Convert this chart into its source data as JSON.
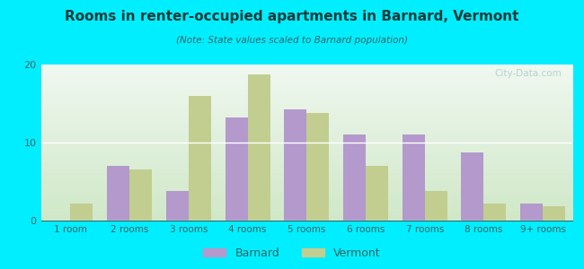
{
  "title": "Rooms in renter-occupied apartments in Barnard, Vermont",
  "subtitle": "(Note: State values scaled to Barnard population)",
  "categories": [
    "1 room",
    "2 rooms",
    "3 rooms",
    "4 rooms",
    "5 rooms",
    "6 rooms",
    "7 rooms",
    "8 rooms",
    "9+ rooms"
  ],
  "barnard": [
    0,
    7.0,
    3.8,
    13.2,
    14.3,
    11.0,
    11.0,
    8.7,
    2.2
  ],
  "vermont": [
    2.2,
    6.5,
    16.0,
    18.7,
    13.8,
    7.0,
    3.8,
    2.2,
    1.8
  ],
  "barnard_color": "#b399cc",
  "vermont_color": "#c2ce8f",
  "background_outer": "#00eeff",
  "background_plot_top": "#f0f8f0",
  "background_plot_bottom": "#d0e8c8",
  "ylim": [
    0,
    20
  ],
  "yticks": [
    0,
    10,
    20
  ],
  "bar_width": 0.38,
  "watermark": "City-Data.com",
  "legend_barnard": "Barnard",
  "legend_vermont": "Vermont",
  "title_color": "#1a3a3a",
  "subtitle_color": "#336666",
  "tick_color": "#336666",
  "grid_color": "#ffffff"
}
